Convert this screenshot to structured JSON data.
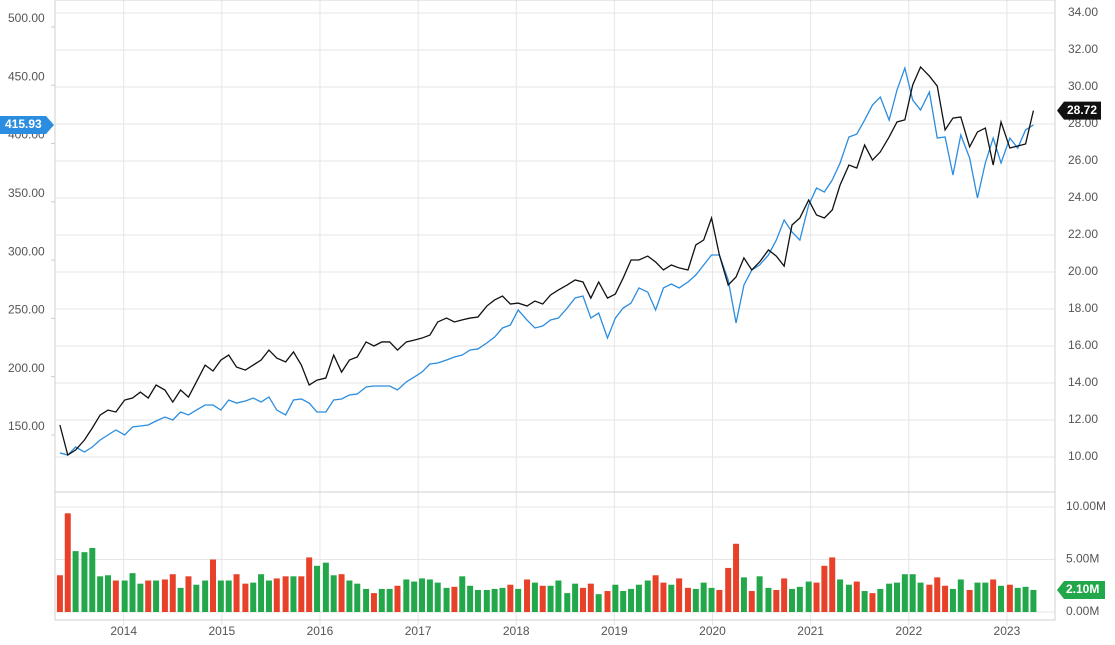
{
  "chart_data": [
    {
      "type": "line",
      "x": [
        2013.35,
        2013.43,
        2013.51,
        2013.6,
        2013.68,
        2013.76,
        2013.84,
        2013.92,
        2014.01,
        2014.09,
        2014.17,
        2014.25,
        2014.33,
        2014.42,
        2014.5,
        2014.58,
        2014.66,
        2014.74,
        2014.83,
        2014.91,
        2014.99,
        2015.07,
        2015.15,
        2015.24,
        2015.32,
        2015.4,
        2015.48,
        2015.56,
        2015.65,
        2015.73,
        2015.81,
        2015.89,
        2015.97,
        2016.06,
        2016.14,
        2016.22,
        2016.3,
        2016.38,
        2016.47,
        2016.55,
        2016.63,
        2016.71,
        2016.79,
        2016.88,
        2016.96,
        2017.04,
        2017.12,
        2017.2,
        2017.29,
        2017.37,
        2017.45,
        2017.53,
        2017.61,
        2017.7,
        2017.78,
        2017.86,
        2017.94,
        2018.02,
        2018.11,
        2018.19,
        2018.27,
        2018.35,
        2018.43,
        2018.52,
        2018.6,
        2018.68,
        2018.76,
        2018.84,
        2018.93,
        2019.01,
        2019.09,
        2019.17,
        2019.25,
        2019.34,
        2019.42,
        2019.5,
        2019.58,
        2019.66,
        2019.75,
        2019.83,
        2019.91,
        2019.99,
        2020.07,
        2020.16,
        2020.24,
        2020.32,
        2020.4,
        2020.48,
        2020.57,
        2020.65,
        2020.73,
        2020.81,
        2020.89,
        2020.98,
        2021.06,
        2021.14,
        2021.22,
        2021.3,
        2021.39,
        2021.47,
        2021.55,
        2021.63,
        2021.71,
        2021.8,
        2021.88,
        2021.96,
        2022.04,
        2022.12,
        2022.21,
        2022.29,
        2022.37,
        2022.45,
        2022.53,
        2022.62,
        2022.7,
        2022.78,
        2022.86,
        2022.94,
        2023.03,
        2023.11,
        2023.19,
        2023.27
      ],
      "xlim": [
        2013.3,
        2023.49
      ],
      "xticks": [
        2014,
        2015,
        2016,
        2017,
        2018,
        2019,
        2020,
        2021,
        2022,
        2023
      ],
      "ylim": [
        101.1,
        523.1
      ],
      "yticks": [
        {
          "value": 150,
          "label": "150.00"
        },
        {
          "value": 200,
          "label": "200.00"
        },
        {
          "value": 250,
          "label": "250.00"
        },
        {
          "value": 300,
          "label": "300.00"
        },
        {
          "value": 350,
          "label": "350.00"
        },
        {
          "value": 400,
          "label": "400.00"
        },
        {
          "value": 450,
          "label": "450.00"
        },
        {
          "value": 500,
          "label": "500.00"
        }
      ],
      "y2lim": [
        8.11,
        34.7
      ],
      "y2ticks": [
        {
          "value": 10,
          "label": "10.00"
        },
        {
          "value": 12,
          "label": "12.00"
        },
        {
          "value": 14,
          "label": "14.00"
        },
        {
          "value": 16,
          "label": "16.00"
        },
        {
          "value": 18,
          "label": "18.00"
        },
        {
          "value": 20,
          "label": "20.00"
        },
        {
          "value": 22,
          "label": "22.00"
        },
        {
          "value": 24,
          "label": "24.00"
        },
        {
          "value": 26,
          "label": "26.00"
        },
        {
          "value": 28,
          "label": "28.00"
        },
        {
          "value": 30,
          "label": "30.00"
        },
        {
          "value": 32,
          "label": "32.00"
        },
        {
          "value": 34,
          "label": "34.00"
        }
      ],
      "grid": true,
      "series": [
        {
          "color": "#2b8de0",
          "axis": "y",
          "values": [
            134.6,
            132.8,
            139.7,
            135.4,
            139.7,
            145.7,
            150.0,
            154.3,
            150.0,
            156.9,
            157.7,
            158.6,
            162.0,
            165.4,
            162.9,
            169.7,
            167.2,
            171.4,
            175.7,
            175.7,
            171.4,
            180.0,
            177.4,
            179.2,
            181.7,
            178.3,
            182.6,
            171.4,
            167.2,
            180.0,
            180.9,
            177.4,
            169.7,
            169.7,
            180.0,
            180.9,
            184.3,
            185.2,
            191.2,
            192.0,
            192.0,
            192.0,
            188.6,
            195.5,
            199.7,
            204.0,
            210.9,
            211.7,
            214.3,
            216.9,
            218.6,
            222.9,
            223.8,
            228.9,
            234.0,
            241.8,
            244.3,
            257.2,
            248.6,
            241.8,
            243.5,
            248.6,
            250.3,
            258.9,
            267.5,
            269.2,
            250.3,
            254.6,
            233.2,
            250.3,
            258.9,
            263.2,
            276.1,
            272.6,
            257.2,
            276.1,
            279.5,
            276.1,
            281.2,
            287.2,
            295.8,
            304.4,
            304.4,
            282.9,
            246.1,
            278.6,
            291.5,
            295.8,
            304.4,
            317.2,
            334.4,
            324.1,
            317.2,
            347.2,
            361.8,
            358.4,
            368.7,
            383.3,
            405.6,
            408.1,
            420.1,
            433.0,
            439.9,
            420.1,
            445.9,
            464.7,
            437.3,
            428.7,
            444.2,
            404.7,
            405.6,
            373.0,
            407.3,
            387.6,
            353.3,
            383.3,
            404.7,
            383.3,
            404.7,
            396.1,
            411.6,
            415.93
          ]
        },
        {
          "color": "#111111",
          "axis": "y2",
          "values": [
            11.73,
            10.11,
            10.38,
            10.92,
            11.57,
            12.27,
            12.54,
            12.43,
            13.08,
            13.19,
            13.51,
            13.19,
            13.89,
            13.62,
            12.97,
            13.62,
            13.24,
            14.05,
            14.97,
            14.65,
            15.24,
            15.51,
            14.86,
            14.7,
            14.97,
            15.24,
            15.78,
            15.35,
            15.14,
            15.68,
            14.97,
            13.89,
            14.16,
            14.27,
            15.51,
            14.59,
            15.24,
            15.41,
            16.22,
            16.0,
            16.22,
            16.22,
            15.78,
            16.22,
            16.32,
            16.43,
            16.59,
            17.3,
            17.51,
            17.3,
            17.41,
            17.51,
            17.57,
            18.16,
            18.49,
            18.7,
            18.27,
            18.32,
            18.16,
            18.43,
            18.27,
            18.76,
            19.03,
            19.3,
            19.57,
            19.46,
            18.59,
            19.46,
            18.59,
            18.81,
            19.68,
            20.65,
            20.65,
            20.86,
            20.54,
            20.11,
            20.38,
            20.22,
            20.11,
            21.46,
            21.73,
            22.92,
            20.92,
            19.3,
            19.73,
            20.76,
            20.11,
            20.54,
            21.19,
            20.86,
            20.32,
            22.54,
            22.92,
            23.89,
            23.08,
            22.92,
            23.35,
            24.7,
            25.78,
            25.62,
            26.86,
            26.05,
            26.49,
            27.3,
            28.11,
            28.22,
            30.11,
            31.08,
            30.59,
            30.05,
            27.68,
            28.32,
            28.38,
            26.76,
            27.57,
            27.78,
            25.78,
            28.11,
            26.7,
            26.81,
            26.92,
            28.72
          ]
        }
      ]
    },
    {
      "type": "bar",
      "x": [
        2013.35,
        2013.43,
        2013.51,
        2013.6,
        2013.68,
        2013.76,
        2013.84,
        2013.92,
        2014.01,
        2014.09,
        2014.17,
        2014.25,
        2014.33,
        2014.42,
        2014.5,
        2014.58,
        2014.66,
        2014.74,
        2014.83,
        2014.91,
        2014.99,
        2015.07,
        2015.15,
        2015.24,
        2015.32,
        2015.4,
        2015.48,
        2015.56,
        2015.65,
        2015.73,
        2015.81,
        2015.89,
        2015.97,
        2016.06,
        2016.14,
        2016.22,
        2016.3,
        2016.38,
        2016.47,
        2016.55,
        2016.63,
        2016.71,
        2016.79,
        2016.88,
        2016.96,
        2017.04,
        2017.12,
        2017.2,
        2017.29,
        2017.37,
        2017.45,
        2017.53,
        2017.61,
        2017.7,
        2017.78,
        2017.86,
        2017.94,
        2018.02,
        2018.11,
        2018.19,
        2018.27,
        2018.35,
        2018.43,
        2018.52,
        2018.6,
        2018.68,
        2018.76,
        2018.84,
        2018.93,
        2019.01,
        2019.09,
        2019.17,
        2019.25,
        2019.34,
        2019.42,
        2019.5,
        2019.58,
        2019.66,
        2019.75,
        2019.83,
        2019.91,
        2019.99,
        2020.07,
        2020.16,
        2020.24,
        2020.32,
        2020.4,
        2020.48,
        2020.57,
        2020.65,
        2020.73,
        2020.81,
        2020.89,
        2020.98,
        2021.06,
        2021.14,
        2021.22,
        2021.3,
        2021.39,
        2021.47,
        2021.55,
        2021.63,
        2021.71,
        2021.8,
        2021.88,
        2021.96,
        2022.04,
        2022.12,
        2022.21,
        2022.29,
        2022.37,
        2022.45,
        2022.53,
        2022.62,
        2022.7,
        2022.78,
        2022.86,
        2022.94,
        2023.03,
        2023.11,
        2023.19,
        2023.27
      ],
      "xlim": [
        2013.3,
        2023.49
      ],
      "xticks": [
        2014,
        2015,
        2016,
        2017,
        2018,
        2019,
        2020,
        2021,
        2022,
        2023
      ],
      "ylim": [
        -0.76,
        11.43
      ],
      "yticks": [
        {
          "value": 0,
          "label": "0.00M"
        },
        {
          "value": 5,
          "label": "5.00M"
        },
        {
          "value": 10,
          "label": "10.00M"
        }
      ],
      "values": [
        3.5,
        9.4,
        5.8,
        5.7,
        6.1,
        3.4,
        3.5,
        3.0,
        3.0,
        3.7,
        2.7,
        3.0,
        3.0,
        3.1,
        3.6,
        2.3,
        3.4,
        2.6,
        3.0,
        5.0,
        3.0,
        3.0,
        3.6,
        2.7,
        2.8,
        3.6,
        3.0,
        3.2,
        3.4,
        3.4,
        3.4,
        5.2,
        4.4,
        4.7,
        3.5,
        3.6,
        3.0,
        2.7,
        2.2,
        1.8,
        2.2,
        2.2,
        2.5,
        3.1,
        2.9,
        3.2,
        3.1,
        2.8,
        2.3,
        2.4,
        3.4,
        2.5,
        2.1,
        2.1,
        2.2,
        2.3,
        2.6,
        2.2,
        3.1,
        2.8,
        2.5,
        2.5,
        3.0,
        1.8,
        2.7,
        2.3,
        2.7,
        1.7,
        2.0,
        2.6,
        2.0,
        2.2,
        2.6,
        3.0,
        3.5,
        2.8,
        2.6,
        3.2,
        2.3,
        2.2,
        2.8,
        2.3,
        2.1,
        4.2,
        6.5,
        3.3,
        2.0,
        3.4,
        2.3,
        2.1,
        3.2,
        2.2,
        2.4,
        2.9,
        2.8,
        4.4,
        5.2,
        3.1,
        2.6,
        2.9,
        2.0,
        1.8,
        2.2,
        2.7,
        2.8,
        3.6,
        3.6,
        2.8,
        2.6,
        3.3,
        2.5,
        2.2,
        3.1,
        2.1,
        2.8,
        2.8,
        3.1,
        2.5,
        2.6,
        2.3,
        2.4,
        2.1
      ],
      "colors": [
        "#e8412a",
        "#e8412a",
        "#22a84a",
        "#22a84a",
        "#22a84a",
        "#22a84a",
        "#22a84a",
        "#e8412a",
        "#22a84a",
        "#22a84a",
        "#22a84a",
        "#e8412a",
        "#22a84a",
        "#e8412a",
        "#e8412a",
        "#22a84a",
        "#e8412a",
        "#22a84a",
        "#22a84a",
        "#e8412a",
        "#22a84a",
        "#22a84a",
        "#e8412a",
        "#e8412a",
        "#22a84a",
        "#22a84a",
        "#22a84a",
        "#e8412a",
        "#e8412a",
        "#22a84a",
        "#e8412a",
        "#e8412a",
        "#22a84a",
        "#22a84a",
        "#22a84a",
        "#e8412a",
        "#22a84a",
        "#22a84a",
        "#22a84a",
        "#e8412a",
        "#22a84a",
        "#22a84a",
        "#e8412a",
        "#22a84a",
        "#22a84a",
        "#22a84a",
        "#22a84a",
        "#22a84a",
        "#22a84a",
        "#e8412a",
        "#22a84a",
        "#22a84a",
        "#22a84a",
        "#22a84a",
        "#22a84a",
        "#22a84a",
        "#e8412a",
        "#22a84a",
        "#e8412a",
        "#22a84a",
        "#e8412a",
        "#22a84a",
        "#22a84a",
        "#22a84a",
        "#22a84a",
        "#e8412a",
        "#e8412a",
        "#22a84a",
        "#e8412a",
        "#22a84a",
        "#22a84a",
        "#22a84a",
        "#22a84a",
        "#22a84a",
        "#e8412a",
        "#e8412a",
        "#22a84a",
        "#e8412a",
        "#e8412a",
        "#22a84a",
        "#22a84a",
        "#22a84a",
        "#e8412a",
        "#e8412a",
        "#e8412a",
        "#22a84a",
        "#e8412a",
        "#22a84a",
        "#22a84a",
        "#e8412a",
        "#e8412a",
        "#22a84a",
        "#22a84a",
        "#22a84a",
        "#e8412a",
        "#e8412a",
        "#e8412a",
        "#22a84a",
        "#22a84a",
        "#e8412a",
        "#22a84a",
        "#e8412a",
        "#22a84a",
        "#22a84a",
        "#22a84a",
        "#22a84a",
        "#22a84a",
        "#22a84a",
        "#e8412a",
        "#e8412a",
        "#e8412a",
        "#22a84a",
        "#22a84a",
        "#e8412a",
        "#22a84a",
        "#22a84a",
        "#e8412a",
        "#22a84a",
        "#e8412a",
        "#22a84a",
        "#22a84a",
        "#22a84a"
      ],
      "last_label": "2.10M"
    }
  ]
}
